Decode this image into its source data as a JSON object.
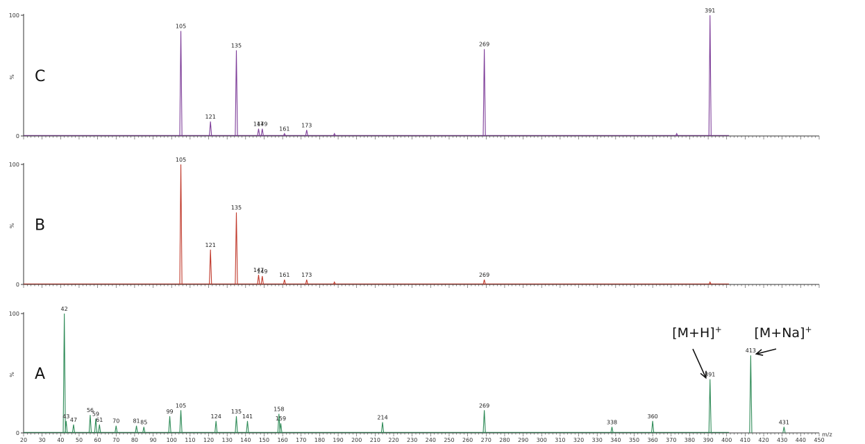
{
  "chart_data": [
    {
      "type": "line",
      "panel_label": "C",
      "color": "#7d3c98",
      "xlim": [
        20,
        450
      ],
      "ylim": [
        0,
        100
      ],
      "ylabel": "%",
      "y_tick_labels": [
        "0",
        "100"
      ],
      "x_unit": "",
      "x_tick_labels": [],
      "peaks": [
        {
          "x": 105,
          "y": 87,
          "label": "105"
        },
        {
          "x": 121,
          "y": 12,
          "label": "121"
        },
        {
          "x": 135,
          "y": 71,
          "label": "135"
        },
        {
          "x": 147,
          "y": 6,
          "label": "147"
        },
        {
          "x": 149,
          "y": 6,
          "label": "149"
        },
        {
          "x": 161,
          "y": 2,
          "label": "161"
        },
        {
          "x": 173,
          "y": 5,
          "label": "173"
        },
        {
          "x": 188,
          "y": 2,
          "label": ""
        },
        {
          "x": 269,
          "y": 72,
          "label": "269"
        },
        {
          "x": 373,
          "y": 2,
          "label": ""
        },
        {
          "x": 391,
          "y": 100,
          "label": "391"
        }
      ],
      "annotations": []
    },
    {
      "type": "line",
      "panel_label": "B",
      "color": "#c0392b",
      "xlim": [
        20,
        450
      ],
      "ylim": [
        0,
        100
      ],
      "ylabel": "%",
      "y_tick_labels": [
        "0",
        "100"
      ],
      "x_unit": "",
      "x_tick_labels": [],
      "peaks": [
        {
          "x": 105,
          "y": 100,
          "label": "105"
        },
        {
          "x": 121,
          "y": 29,
          "label": "121"
        },
        {
          "x": 135,
          "y": 60,
          "label": "135"
        },
        {
          "x": 147,
          "y": 8,
          "label": "147"
        },
        {
          "x": 149,
          "y": 7,
          "label": "149"
        },
        {
          "x": 161,
          "y": 4,
          "label": "161"
        },
        {
          "x": 173,
          "y": 4,
          "label": "173"
        },
        {
          "x": 188,
          "y": 2,
          "label": ""
        },
        {
          "x": 269,
          "y": 4,
          "label": "269"
        },
        {
          "x": 391,
          "y": 2,
          "label": ""
        }
      ],
      "annotations": []
    },
    {
      "type": "line",
      "panel_label": "A",
      "color": "#2e8b57",
      "xlim": [
        20,
        450
      ],
      "ylim": [
        0,
        100
      ],
      "ylabel": "%",
      "y_tick_labels": [
        "0",
        "100"
      ],
      "x_unit": "m/z",
      "x_tick_labels": [
        "20",
        "30",
        "40",
        "50",
        "60",
        "70",
        "80",
        "90",
        "100",
        "110",
        "120",
        "130",
        "140",
        "150",
        "160",
        "170",
        "180",
        "190",
        "200",
        "210",
        "220",
        "230",
        "240",
        "250",
        "260",
        "270",
        "280",
        "290",
        "300",
        "310",
        "320",
        "330",
        "340",
        "350",
        "360",
        "370",
        "380",
        "390",
        "400",
        "410",
        "420",
        "430",
        "440",
        "450"
      ],
      "peaks": [
        {
          "x": 42,
          "y": 100,
          "label": "42"
        },
        {
          "x": 43,
          "y": 10,
          "label": "43"
        },
        {
          "x": 47,
          "y": 7,
          "label": "47"
        },
        {
          "x": 56,
          "y": 15,
          "label": "56"
        },
        {
          "x": 59,
          "y": 12,
          "label": "59"
        },
        {
          "x": 61,
          "y": 7,
          "label": "61"
        },
        {
          "x": 70,
          "y": 6,
          "label": "70"
        },
        {
          "x": 81,
          "y": 6,
          "label": "81"
        },
        {
          "x": 85,
          "y": 5,
          "label": "85"
        },
        {
          "x": 99,
          "y": 14,
          "label": "99"
        },
        {
          "x": 105,
          "y": 19,
          "label": "105"
        },
        {
          "x": 124,
          "y": 10,
          "label": "124"
        },
        {
          "x": 135,
          "y": 14,
          "label": "135"
        },
        {
          "x": 141,
          "y": 10,
          "label": "141"
        },
        {
          "x": 158,
          "y": 16,
          "label": "158"
        },
        {
          "x": 159,
          "y": 8,
          "label": "159"
        },
        {
          "x": 214,
          "y": 9,
          "label": "214"
        },
        {
          "x": 269,
          "y": 19,
          "label": "269"
        },
        {
          "x": 338,
          "y": 5,
          "label": "338"
        },
        {
          "x": 360,
          "y": 10,
          "label": "360"
        },
        {
          "x": 391,
          "y": 45,
          "label": "391"
        },
        {
          "x": 413,
          "y": 65,
          "label": "413"
        },
        {
          "x": 431,
          "y": 5,
          "label": "431"
        }
      ],
      "annotations": [
        {
          "text": "[M+H]+",
          "target_x": 391
        },
        {
          "text": "[M+Na]+",
          "target_x": 413
        }
      ]
    }
  ]
}
